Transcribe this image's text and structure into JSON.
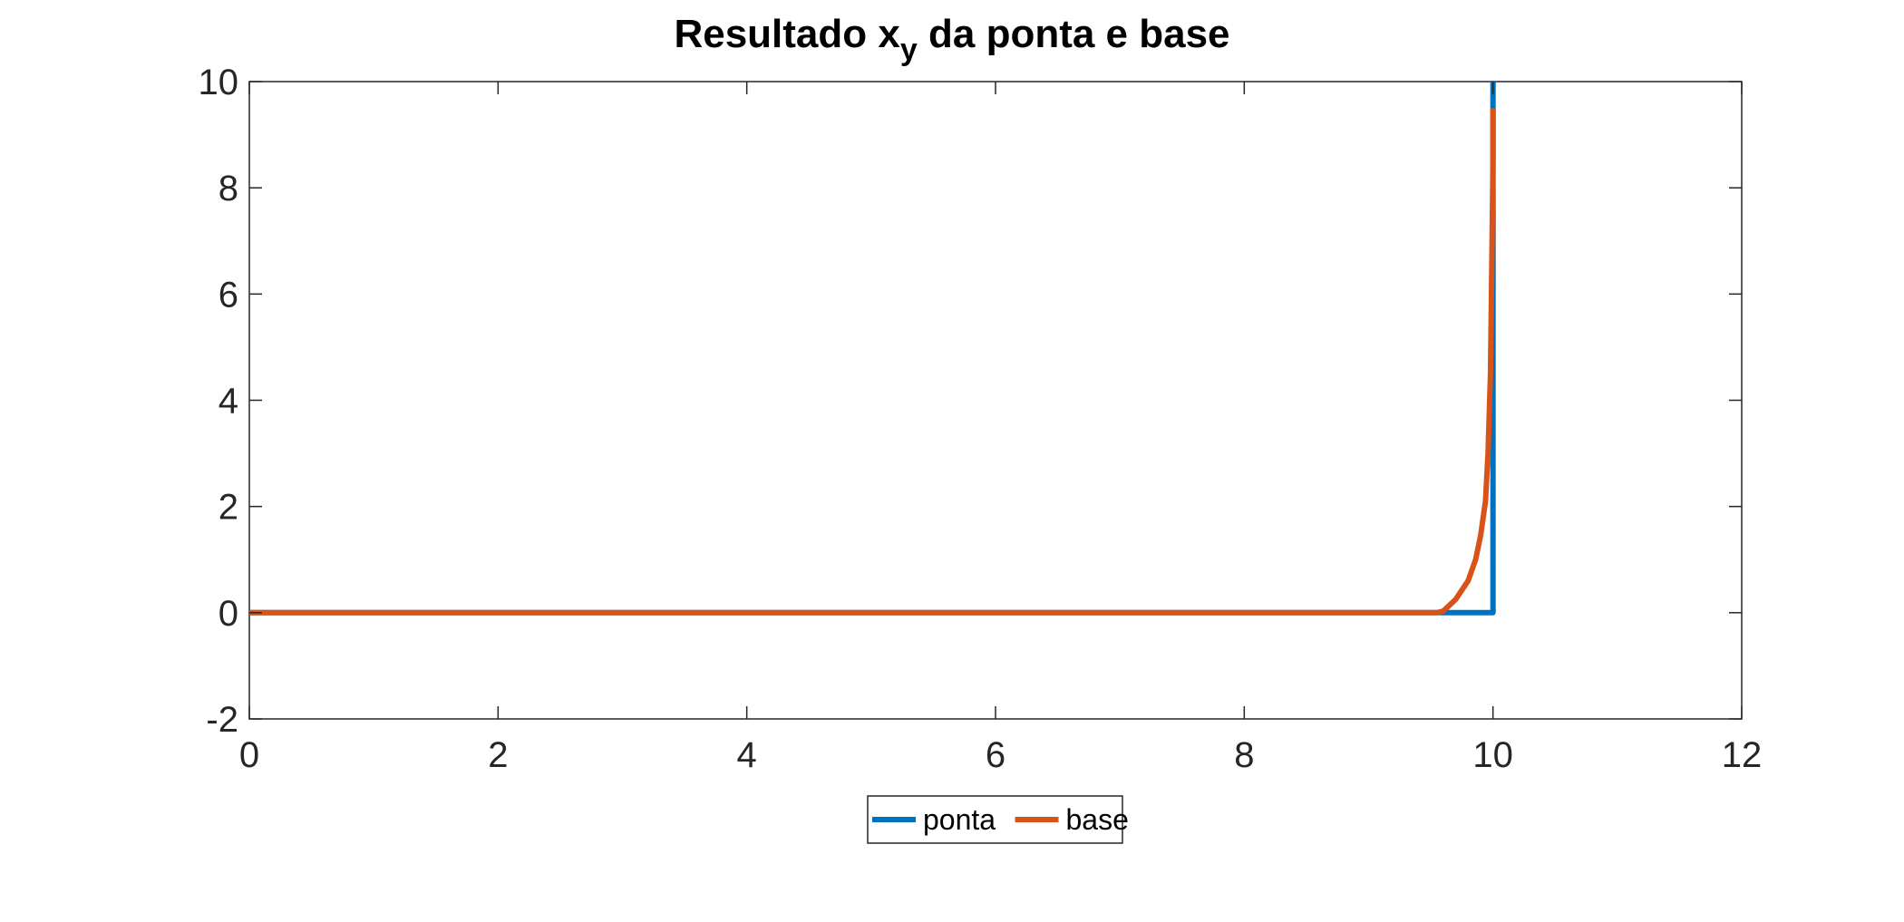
{
  "chart_data": {
    "type": "line",
    "title": {
      "main": "Resultado x",
      "subscript": "y",
      "rest": " da ponta e base"
    },
    "xlabel": "",
    "ylabel": "",
    "xlim": [
      0,
      12
    ],
    "ylim": [
      -2,
      10
    ],
    "xticks": [
      0,
      2,
      4,
      6,
      8,
      10,
      12
    ],
    "yticks": [
      -2,
      0,
      2,
      4,
      6,
      8,
      10
    ],
    "xtick_labels": [
      "0",
      "2",
      "4",
      "6",
      "8",
      "10",
      "12"
    ],
    "ytick_labels": [
      "-2",
      "0",
      "2",
      "4",
      "6",
      "8",
      "10"
    ],
    "grid": false,
    "box": true,
    "legend": {
      "placement": "bottom-outside",
      "orientation": "horizontal"
    },
    "series": [
      {
        "name": "ponta",
        "color": "#0072BD",
        "x": [
          0,
          9.95,
          10.0,
          10.0
        ],
        "y": [
          0,
          0,
          0,
          10
        ]
      },
      {
        "name": "base",
        "color": "#D95319",
        "x": [
          0,
          9.55,
          9.6,
          9.7,
          9.8,
          9.86,
          9.9,
          9.94,
          9.96,
          9.98,
          9.99,
          10.0,
          10.0
        ],
        "y": [
          0,
          0,
          0.03,
          0.25,
          0.6,
          1.0,
          1.45,
          2.1,
          3.0,
          4.5,
          6.5,
          8.5,
          9.5
        ]
      }
    ]
  }
}
